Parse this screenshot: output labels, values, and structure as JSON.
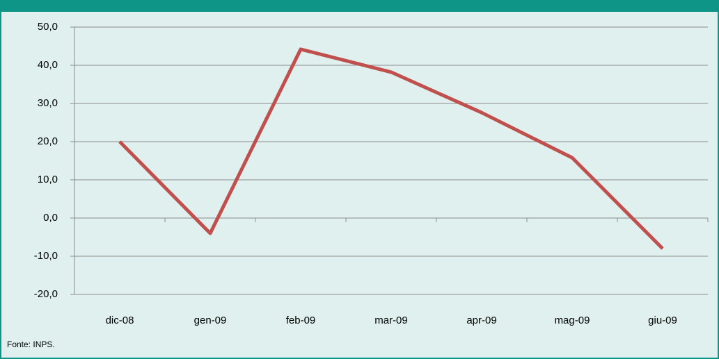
{
  "chart_data": {
    "type": "line",
    "categories": [
      "dic-08",
      "gen-09",
      "feb-09",
      "mar-09",
      "apr-09",
      "mag-09",
      "giu-09"
    ],
    "series": [
      {
        "name": null,
        "color": "#c0504d",
        "values": [
          20.0,
          -4.0,
          44.2,
          38.2,
          27.6,
          15.8,
          -8.0
        ]
      }
    ],
    "ylim": [
      -20,
      50
    ],
    "yticks": [
      {
        "value": -20,
        "label": "-20,0"
      },
      {
        "value": -10,
        "label": "-10,0"
      },
      {
        "value": 0,
        "label": "0,0"
      },
      {
        "value": 10,
        "label": "10,0"
      },
      {
        "value": 20,
        "label": "20,0"
      },
      {
        "value": 30,
        "label": "30,0"
      },
      {
        "value": 40,
        "label": "40,0"
      },
      {
        "value": 50,
        "label": "50,0"
      }
    ],
    "grid": true,
    "source": "Fonte: INPS."
  }
}
